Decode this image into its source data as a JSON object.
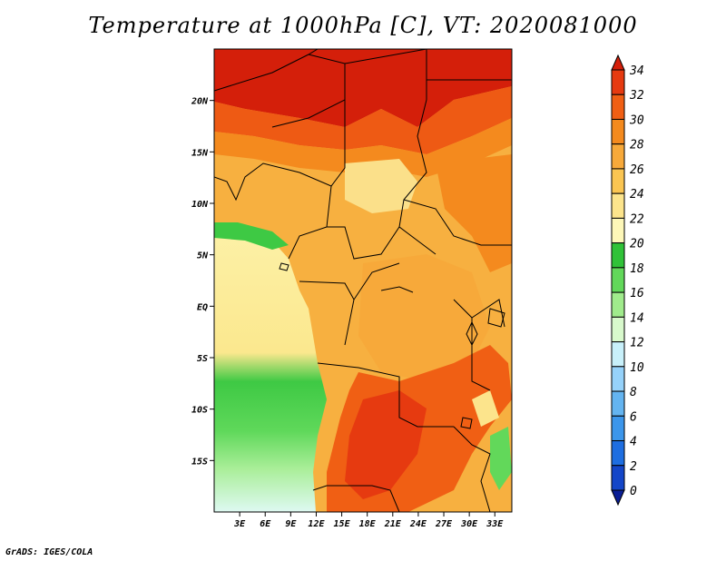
{
  "title": "Temperature at 1000hPa [C], VT: 2020081000",
  "credit": "GrADS: IGES/COLA",
  "map": {
    "lon_range": [
      0,
      35
    ],
    "lat_range": [
      -20,
      25
    ],
    "lat_ticks": [
      {
        "value": 20,
        "label": "20N"
      },
      {
        "value": 15,
        "label": "15N"
      },
      {
        "value": 10,
        "label": "10N"
      },
      {
        "value": 5,
        "label": "5N"
      },
      {
        "value": 0,
        "label": "EQ"
      },
      {
        "value": -5,
        "label": "5S"
      },
      {
        "value": -10,
        "label": "10S"
      },
      {
        "value": -15,
        "label": "15S"
      }
    ],
    "lon_ticks": [
      {
        "value": 3,
        "label": "3E"
      },
      {
        "value": 6,
        "label": "6E"
      },
      {
        "value": 9,
        "label": "9E"
      },
      {
        "value": 12,
        "label": "12E"
      },
      {
        "value": 15,
        "label": "15E"
      },
      {
        "value": 18,
        "label": "18E"
      },
      {
        "value": 21,
        "label": "21E"
      },
      {
        "value": 24,
        "label": "24E"
      },
      {
        "value": 27,
        "label": "27E"
      },
      {
        "value": 30,
        "label": "30E"
      },
      {
        "value": 33,
        "label": "33E"
      }
    ]
  },
  "colorbar": {
    "labels": [
      "34",
      "32",
      "30",
      "28",
      "26",
      "24",
      "22",
      "20",
      "18",
      "16",
      "14",
      "12",
      "10",
      "8",
      "6",
      "4",
      "2",
      "0"
    ],
    "colors": [
      "#d41f0a",
      "#e63a10",
      "#f05f14",
      "#f48a1e",
      "#f7a93a",
      "#fac552",
      "#fce48c",
      "#fdf7b8",
      "#30c238",
      "#62d85a",
      "#a0eb8c",
      "#d8f9cc",
      "#c8f0fa",
      "#96d2fa",
      "#64b4f0",
      "#3c96eb",
      "#1e6ee1",
      "#1446c8",
      "#0a1e96"
    ]
  }
}
